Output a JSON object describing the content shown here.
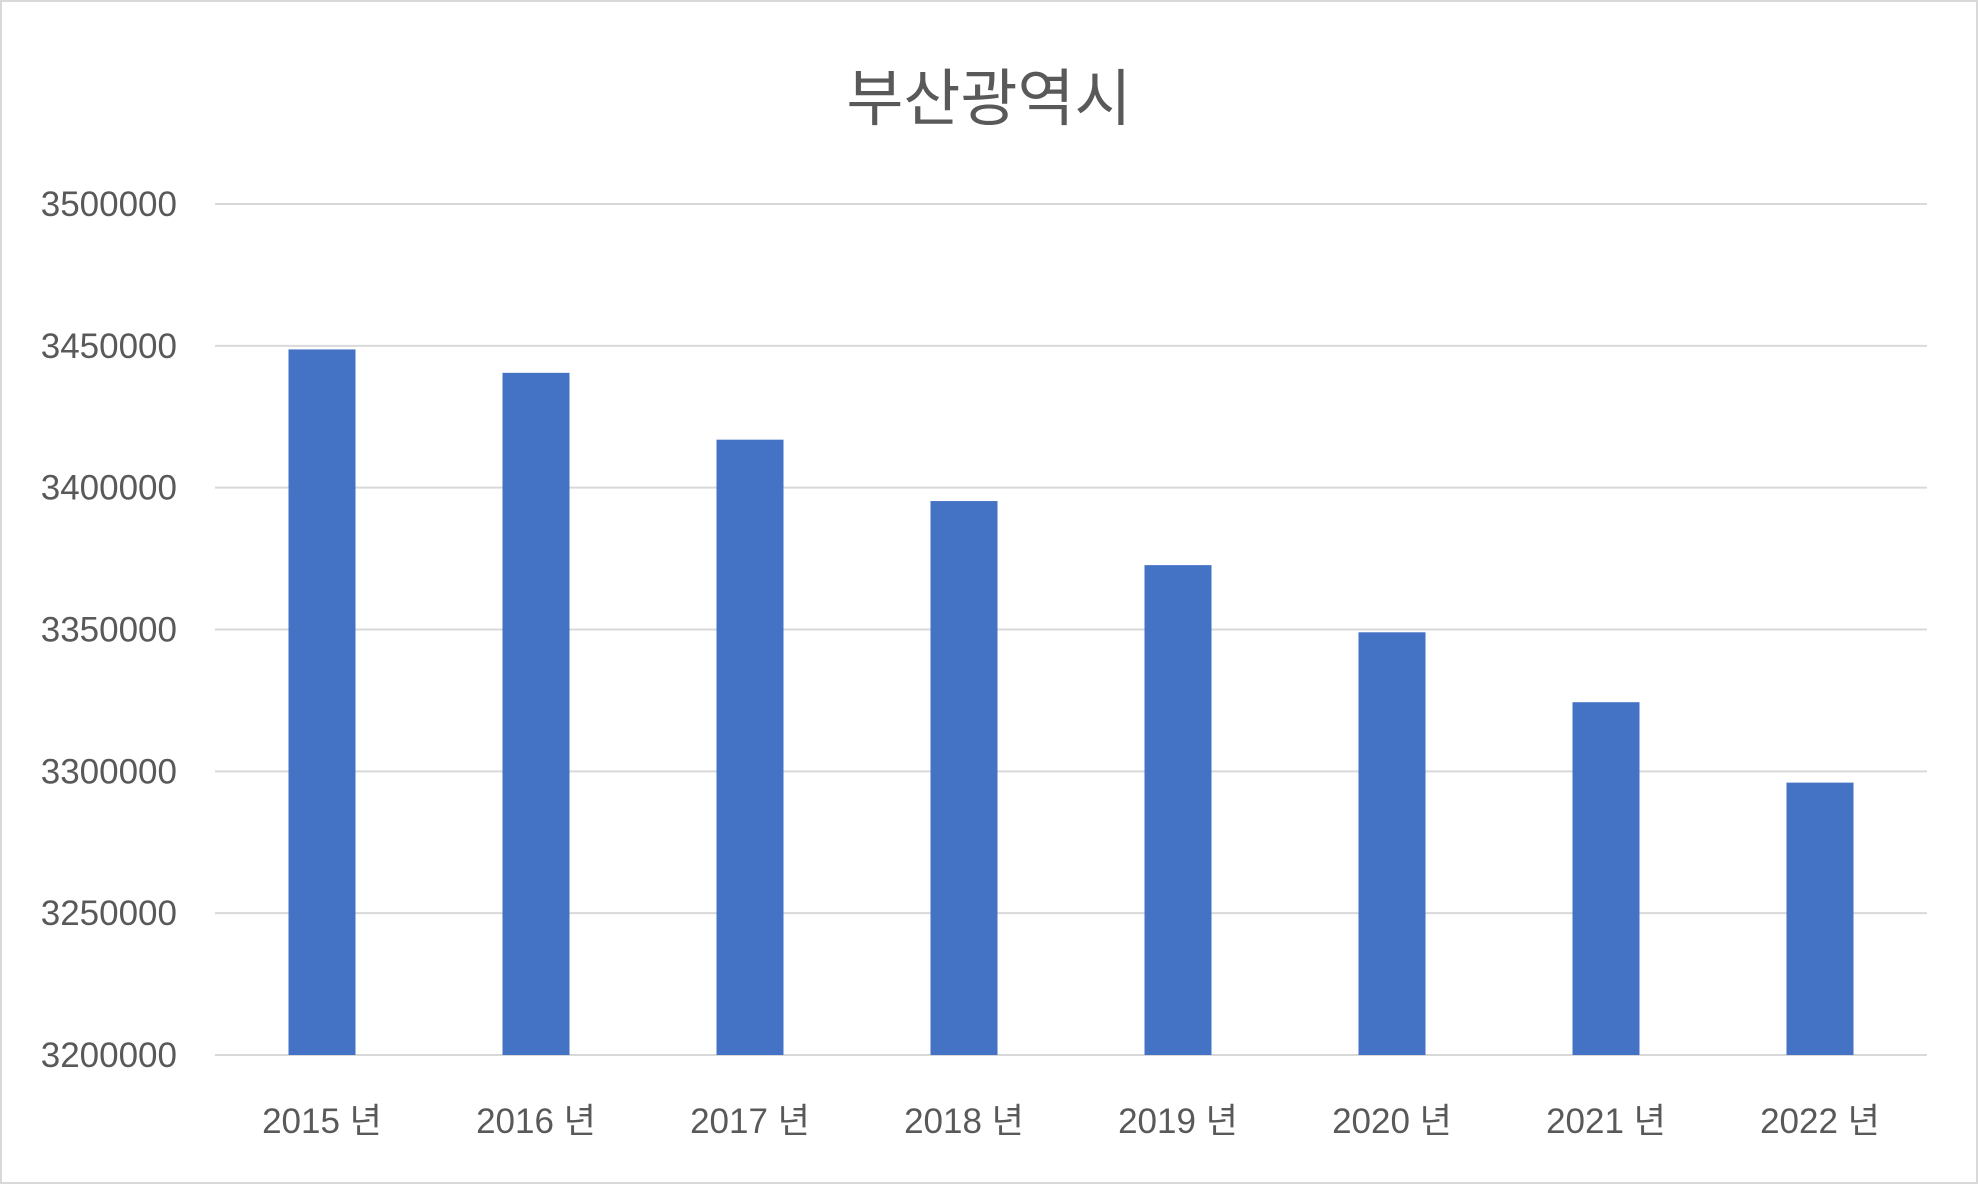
{
  "chart_data": {
    "type": "bar",
    "title": "부산광역시",
    "categories": [
      "2015 년",
      "2016 년",
      "2017 년",
      "2018 년",
      "2019 년",
      "2020 년",
      "2021 년",
      "2022 년"
    ],
    "series": [
      {
        "values": [
          3448737,
          3440484,
          3416918,
          3395278,
          3372692,
          3349016,
          3324371,
          3296019
        ]
      }
    ],
    "ylim": [
      3200000,
      3500000
    ],
    "yticks": [
      3200000,
      3250000,
      3300000,
      3350000,
      3400000,
      3450000,
      3500000
    ],
    "xlabel": "",
    "ylabel": "",
    "grid": true,
    "legend": "none",
    "colors": {
      "bar": "#4472c4",
      "grid": "#d9d9d9",
      "text": "#595959"
    }
  }
}
